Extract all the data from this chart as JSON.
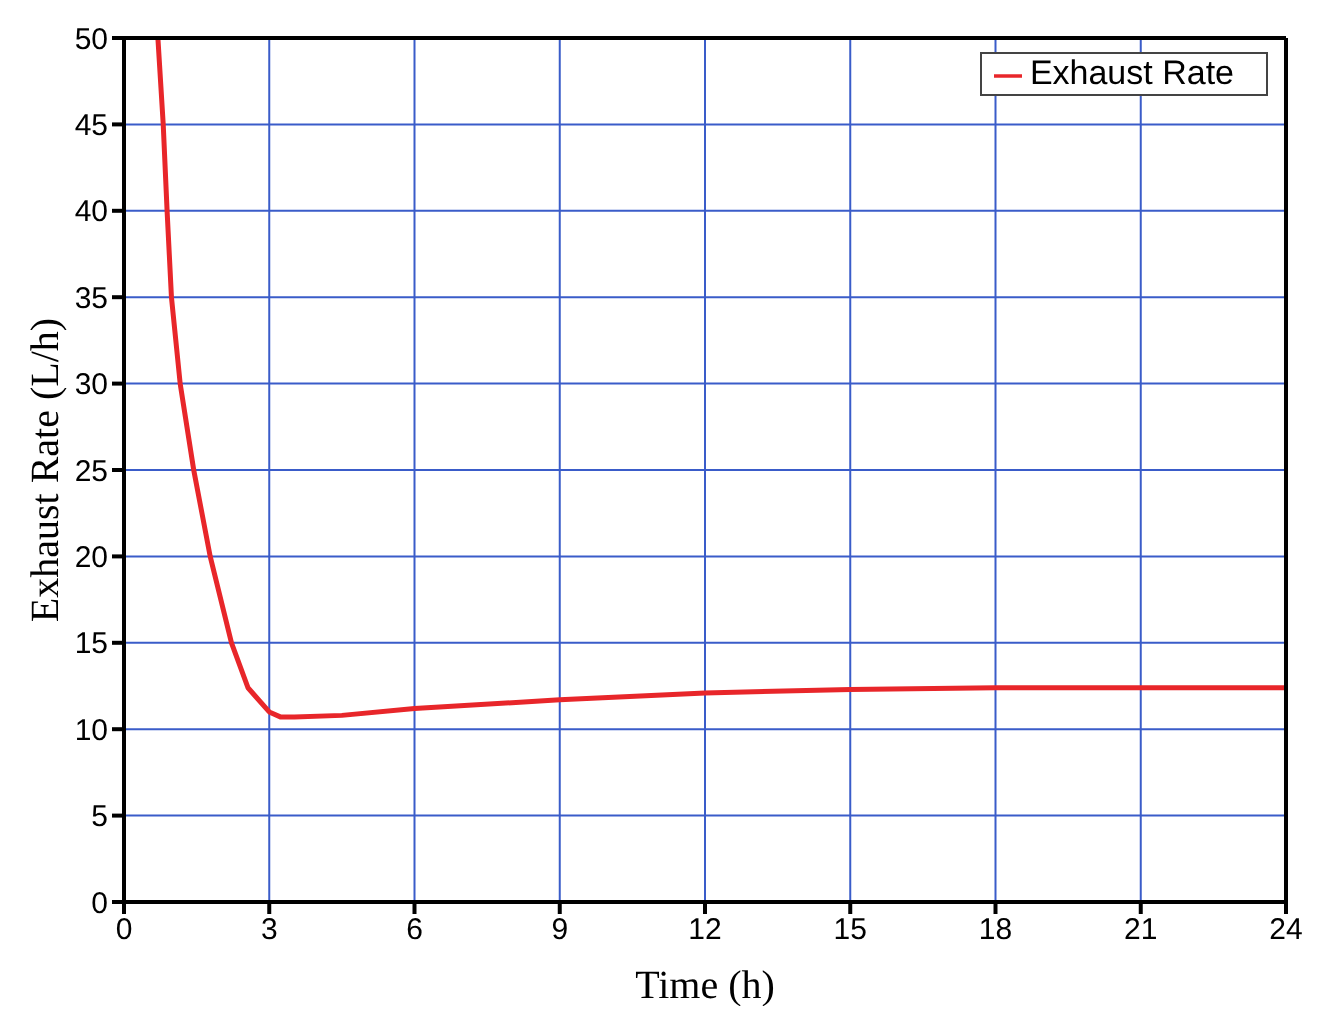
{
  "chart_data": {
    "type": "line",
    "xlabel": "Time (h)",
    "ylabel": "Exhaust Rate (L/h)",
    "xlim": [
      0,
      24
    ],
    "ylim": [
      0,
      50
    ],
    "xticks": [
      0,
      3,
      6,
      9,
      12,
      15,
      18,
      21,
      24
    ],
    "yticks": [
      0,
      5,
      10,
      15,
      20,
      25,
      30,
      35,
      40,
      45,
      50
    ],
    "grid": true,
    "legend": "top right",
    "marker": "none",
    "line_style": "solid",
    "series": [
      {
        "name": "Exhaust Rate",
        "color": "#e8262a",
        "x": [
          0.7,
          0.81,
          0.89,
          0.98,
          1.16,
          1.44,
          1.78,
          2.22,
          2.56,
          3.0,
          3.24,
          3.52,
          4.5,
          6,
          9,
          12,
          15,
          18,
          21,
          24
        ],
        "values": [
          50,
          45,
          40,
          35,
          30,
          25,
          20,
          15,
          12.4,
          11.0,
          10.7,
          10.7,
          10.8,
          11.2,
          11.7,
          12.1,
          12.3,
          12.4,
          12.4,
          12.4
        ]
      }
    ]
  }
}
